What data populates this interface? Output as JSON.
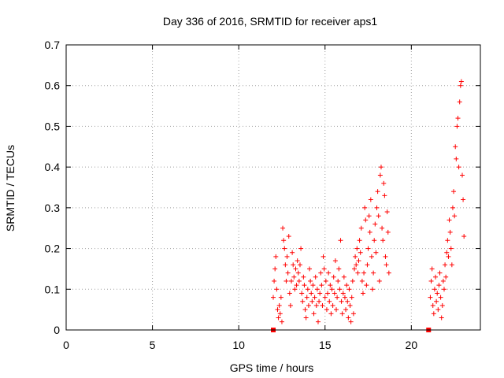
{
  "chart_data": {
    "type": "scatter",
    "title": "Day 336 of 2016, SRMTID for receiver aps1",
    "xlabel": "GPS time / hours",
    "ylabel": "SRMTID / TECUs",
    "xlim": [
      0,
      24
    ],
    "ylim": [
      0,
      0.7
    ],
    "xticks": [
      0,
      5,
      10,
      15,
      20
    ],
    "yticks": [
      0,
      0.1,
      0.2,
      0.3,
      0.4,
      0.5,
      0.6,
      0.7
    ],
    "grid": true,
    "marker": "+",
    "color": "#ff0000",
    "series": [
      {
        "values": [
          [
            12.0,
            0.08
          ],
          [
            12.05,
            0.12
          ],
          [
            12.1,
            0.15
          ],
          [
            12.15,
            0.18
          ],
          [
            12.2,
            0.1
          ],
          [
            12.25,
            0.05
          ],
          [
            12.3,
            0.03
          ],
          [
            12.35,
            0.06
          ],
          [
            12.4,
            0.04
          ],
          [
            12.45,
            0.08
          ],
          [
            12.5,
            0.02
          ],
          [
            12.55,
            0.25
          ],
          [
            12.6,
            0.22
          ],
          [
            12.65,
            0.2
          ],
          [
            12.7,
            0.16
          ],
          [
            12.75,
            0.12
          ],
          [
            12.8,
            0.18
          ],
          [
            12.85,
            0.14
          ],
          [
            12.9,
            0.23
          ],
          [
            12.95,
            0.09
          ],
          [
            13.0,
            0.06
          ],
          [
            13.05,
            0.12
          ],
          [
            13.1,
            0.19
          ],
          [
            13.15,
            0.16
          ],
          [
            13.2,
            0.13
          ],
          [
            13.25,
            0.1
          ],
          [
            13.3,
            0.15
          ],
          [
            13.35,
            0.11
          ],
          [
            13.4,
            0.17
          ],
          [
            13.45,
            0.14
          ],
          [
            13.5,
            0.12
          ],
          [
            13.55,
            0.16
          ],
          [
            13.6,
            0.2
          ],
          [
            13.65,
            0.09
          ],
          [
            13.7,
            0.07
          ],
          [
            13.75,
            0.13
          ],
          [
            13.8,
            0.11
          ],
          [
            13.85,
            0.05
          ],
          [
            13.9,
            0.03
          ],
          [
            13.95,
            0.08
          ],
          [
            14.0,
            0.1
          ],
          [
            14.05,
            0.06
          ],
          [
            14.1,
            0.15
          ],
          [
            14.15,
            0.12
          ],
          [
            14.2,
            0.09
          ],
          [
            14.25,
            0.07
          ],
          [
            14.3,
            0.11
          ],
          [
            14.35,
            0.04
          ],
          [
            14.4,
            0.08
          ],
          [
            14.45,
            0.13
          ],
          [
            14.5,
            0.06
          ],
          [
            14.55,
            0.1
          ],
          [
            14.6,
            0.02
          ],
          [
            14.65,
            0.07
          ],
          [
            14.7,
            0.09
          ],
          [
            14.75,
            0.14
          ],
          [
            14.8,
            0.11
          ],
          [
            14.85,
            0.06
          ],
          [
            14.9,
            0.18
          ],
          [
            14.95,
            0.15
          ],
          [
            15.0,
            0.08
          ],
          [
            15.05,
            0.12
          ],
          [
            15.1,
            0.05
          ],
          [
            15.15,
            0.09
          ],
          [
            15.2,
            0.14
          ],
          [
            15.25,
            0.07
          ],
          [
            15.3,
            0.11
          ],
          [
            15.35,
            0.04
          ],
          [
            15.4,
            0.1
          ],
          [
            15.45,
            0.06
          ],
          [
            15.5,
            0.13
          ],
          [
            15.55,
            0.09
          ],
          [
            15.6,
            0.17
          ],
          [
            15.65,
            0.05
          ],
          [
            15.7,
            0.08
          ],
          [
            15.75,
            0.12
          ],
          [
            15.8,
            0.15
          ],
          [
            15.85,
            0.1
          ],
          [
            15.9,
            0.22
          ],
          [
            15.95,
            0.07
          ],
          [
            16.0,
            0.04
          ],
          [
            16.05,
            0.09
          ],
          [
            16.1,
            0.13
          ],
          [
            16.15,
            0.08
          ],
          [
            16.2,
            0.05
          ],
          [
            16.25,
            0.11
          ],
          [
            16.3,
            0.07
          ],
          [
            16.35,
            0.03
          ],
          [
            16.4,
            0.1
          ],
          [
            16.45,
            0.06
          ],
          [
            16.5,
            0.02
          ],
          [
            16.55,
            0.08
          ],
          [
            16.6,
            0.12
          ],
          [
            16.65,
            0.04
          ],
          [
            16.7,
            0.15
          ],
          [
            16.75,
            0.18
          ],
          [
            16.8,
            0.16
          ],
          [
            16.85,
            0.2
          ],
          [
            16.9,
            0.14
          ],
          [
            16.95,
            0.17
          ],
          [
            17.0,
            0.22
          ],
          [
            17.05,
            0.19
          ],
          [
            17.1,
            0.25
          ],
          [
            17.15,
            0.12
          ],
          [
            17.2,
            0.09
          ],
          [
            17.25,
            0.14
          ],
          [
            17.3,
            0.3
          ],
          [
            17.35,
            0.27
          ],
          [
            17.4,
            0.11
          ],
          [
            17.45,
            0.16
          ],
          [
            17.5,
            0.2
          ],
          [
            17.55,
            0.28
          ],
          [
            17.6,
            0.24
          ],
          [
            17.65,
            0.32
          ],
          [
            17.7,
            0.18
          ],
          [
            17.75,
            0.1
          ],
          [
            17.8,
            0.14
          ],
          [
            17.85,
            0.22
          ],
          [
            17.9,
            0.26
          ],
          [
            17.95,
            0.19
          ],
          [
            18.0,
            0.3
          ],
          [
            18.05,
            0.34
          ],
          [
            18.1,
            0.28
          ],
          [
            18.15,
            0.12
          ],
          [
            18.2,
            0.38
          ],
          [
            18.25,
            0.4
          ],
          [
            18.3,
            0.25
          ],
          [
            18.35,
            0.22
          ],
          [
            18.4,
            0.36
          ],
          [
            18.45,
            0.33
          ],
          [
            18.5,
            0.18
          ],
          [
            18.55,
            0.16
          ],
          [
            18.6,
            0.29
          ],
          [
            18.65,
            0.24
          ],
          [
            18.7,
            0.14
          ],
          [
            21.1,
            0.08
          ],
          [
            21.15,
            0.12
          ],
          [
            21.2,
            0.15
          ],
          [
            21.25,
            0.06
          ],
          [
            21.3,
            0.04
          ],
          [
            21.35,
            0.1
          ],
          [
            21.4,
            0.13
          ],
          [
            21.45,
            0.07
          ],
          [
            21.5,
            0.09
          ],
          [
            21.55,
            0.05
          ],
          [
            21.6,
            0.11
          ],
          [
            21.65,
            0.14
          ],
          [
            21.7,
            0.08
          ],
          [
            21.75,
            0.03
          ],
          [
            21.8,
            0.06
          ],
          [
            21.85,
            0.12
          ],
          [
            21.9,
            0.1
          ],
          [
            21.95,
            0.16
          ],
          [
            22.0,
            0.13
          ],
          [
            22.05,
            0.19
          ],
          [
            22.1,
            0.22
          ],
          [
            22.15,
            0.18
          ],
          [
            22.2,
            0.27
          ],
          [
            22.25,
            0.24
          ],
          [
            22.3,
            0.2
          ],
          [
            22.35,
            0.16
          ],
          [
            22.4,
            0.3
          ],
          [
            22.45,
            0.34
          ],
          [
            22.5,
            0.28
          ],
          [
            22.55,
            0.45
          ],
          [
            22.6,
            0.42
          ],
          [
            22.65,
            0.5
          ],
          [
            22.7,
            0.52
          ],
          [
            22.75,
            0.4
          ],
          [
            22.8,
            0.56
          ],
          [
            22.85,
            0.6
          ],
          [
            22.9,
            0.61
          ],
          [
            22.95,
            0.38
          ],
          [
            23.0,
            0.32
          ],
          [
            23.05,
            0.23
          ]
        ]
      }
    ],
    "zero_markers": [
      12.0,
      21.0
    ]
  }
}
